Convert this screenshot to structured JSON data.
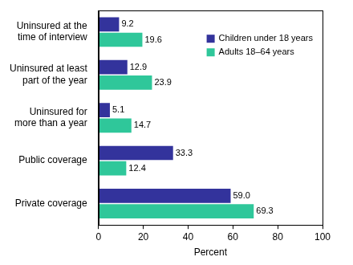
{
  "chart_data": {
    "type": "bar",
    "orientation": "horizontal",
    "categories": [
      "Uninsured at the time of interview",
      "Uninsured at least part of the year",
      "Uninsured for more than a year",
      "Public coverage",
      "Private coverage"
    ],
    "series": [
      {
        "name": "Children under 18 years",
        "color": "#33339c",
        "values": [
          9.2,
          12.9,
          5.1,
          33.3,
          59.0
        ],
        "value_labels": [
          "9.2",
          "12.9",
          "5.1",
          "33.3",
          "59.0"
        ]
      },
      {
        "name": "Adults 18–64 years",
        "color": "#2fc79a",
        "values": [
          19.6,
          23.9,
          14.7,
          12.4,
          69.3
        ],
        "value_labels": [
          "19.6",
          "23.9",
          "14.7",
          "12.4",
          "69.3"
        ]
      }
    ],
    "xlabel": "Percent",
    "xlim": [
      0,
      100
    ],
    "xticks": [
      0,
      20,
      40,
      60,
      80,
      100
    ],
    "grid": false,
    "legend": "upper right",
    "data_labels": true
  }
}
